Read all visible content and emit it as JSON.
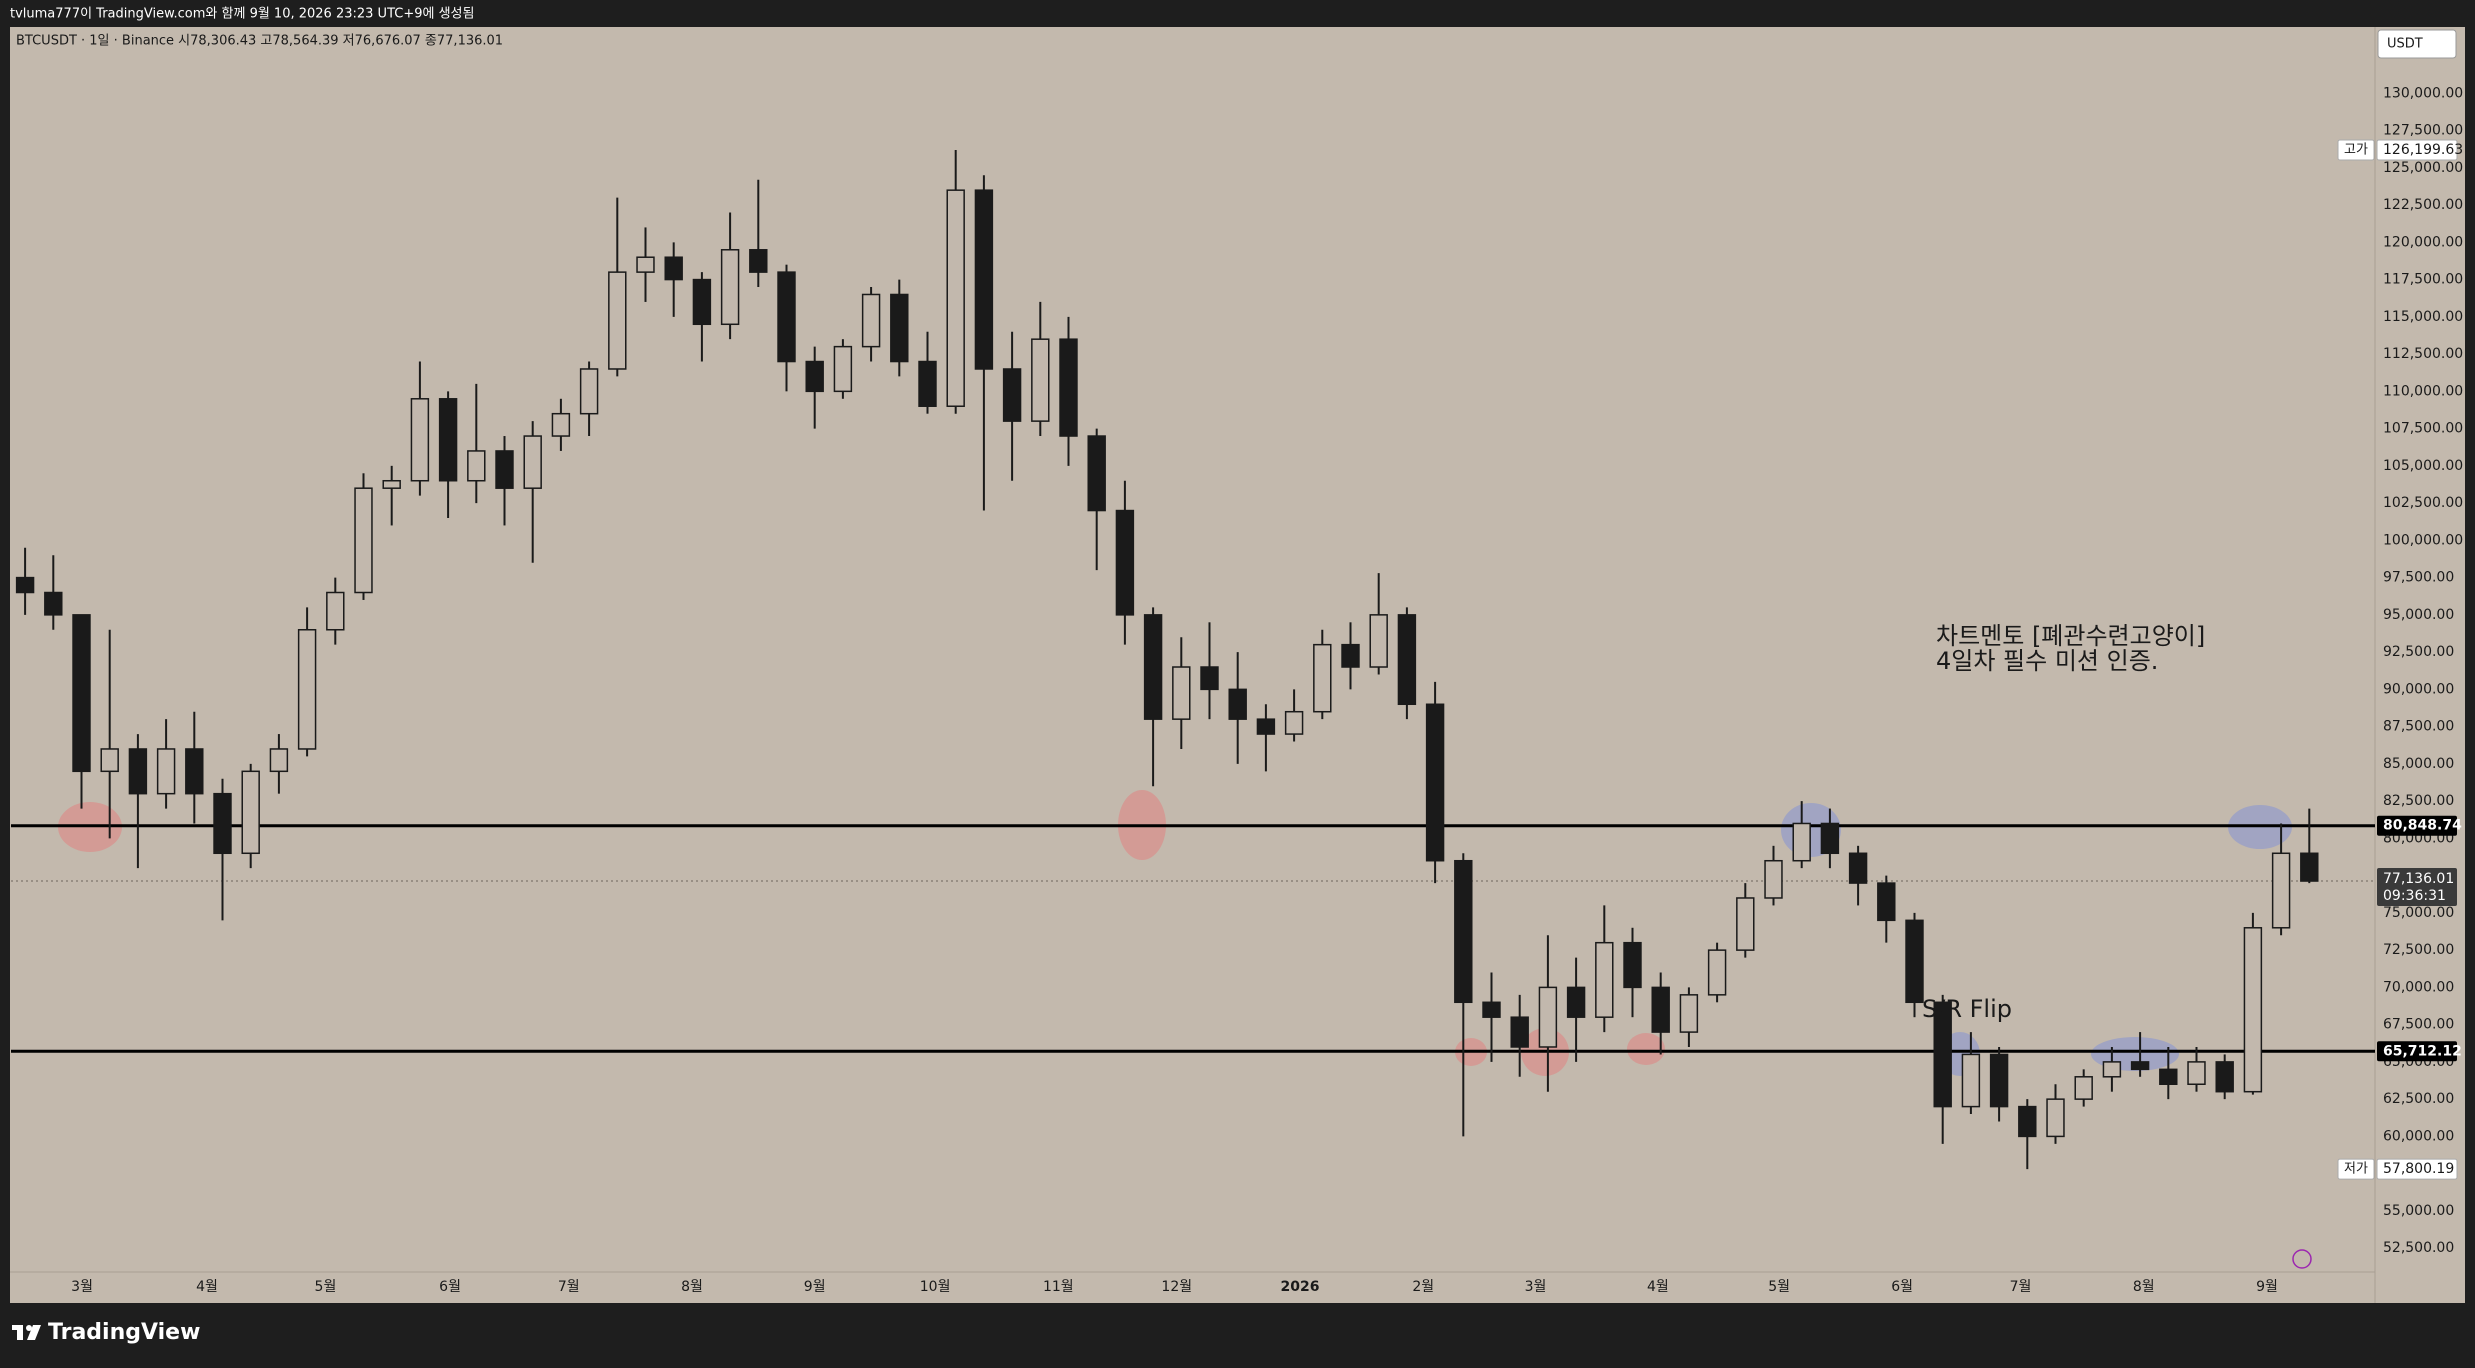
{
  "header": {
    "title": "tvluma777이 TradingView.com와 함께 9월 10, 2026 23:23 UTC+9에 생성됨",
    "symbol_info": "BTCUSDT · 1일 · Binance  시78,306.43  고78,564.39  저76,676.07  종77,136.01",
    "currency": "USDT"
  },
  "footer": {
    "brand": "TradingView"
  },
  "chart_data": {
    "type": "candlestick",
    "up_color": "#c2b8ad",
    "down_color": "#1a1a1a",
    "wick_color": "#1a1a1a",
    "grid": false,
    "open": [
      97500,
      96500,
      95000,
      84500,
      86000,
      83000,
      86000,
      83000,
      79000,
      84500,
      86000,
      94000,
      96500,
      103500,
      104000,
      109500,
      104000,
      106000,
      103500,
      107000,
      108500,
      111500,
      118000,
      119000,
      117500,
      114500,
      119500,
      118000,
      112000,
      110000,
      113000,
      116500,
      112000,
      109000,
      123500,
      111500,
      108000,
      113500,
      107000,
      102000,
      95000,
      88000,
      91500,
      90000,
      88000,
      87000,
      88500,
      93000,
      91500,
      95000,
      89000,
      78500,
      69000,
      68000,
      66000,
      70000,
      68000,
      73000,
      70000,
      67000,
      69500,
      72500,
      76000,
      78500,
      81000,
      79000,
      77000,
      74500,
      69000,
      62000,
      65500,
      62000,
      60000,
      62500,
      64000,
      65000,
      64500,
      63500,
      65000,
      63000,
      74000,
      79000
    ],
    "high": [
      99500,
      99000,
      95000,
      94000,
      87000,
      88000,
      88500,
      84000,
      85000,
      87000,
      95500,
      97500,
      104500,
      105000,
      112000,
      110000,
      110500,
      107000,
      108000,
      109500,
      112000,
      123000,
      121000,
      120000,
      118000,
      122000,
      124200,
      118500,
      113000,
      113500,
      117000,
      117500,
      114000,
      126199.63,
      124500,
      114000,
      116000,
      115000,
      107500,
      104000,
      95500,
      93500,
      94500,
      92500,
      89000,
      90000,
      94000,
      94500,
      97800,
      95500,
      90500,
      79000,
      71000,
      69500,
      73500,
      72000,
      75500,
      74000,
      71000,
      70000,
      73000,
      77000,
      79500,
      82500,
      82000,
      79500,
      77500,
      75000,
      69500,
      67000,
      66000,
      62500,
      63500,
      64500,
      66000,
      67000,
      66000,
      66000,
      65500,
      75000,
      81000,
      82000
    ],
    "low": [
      95000,
      94000,
      82000,
      80000,
      78000,
      82000,
      81000,
      74500,
      78000,
      83000,
      85500,
      93000,
      96000,
      101000,
      103000,
      101500,
      102500,
      101000,
      98500,
      106000,
      107000,
      111000,
      116000,
      115000,
      112000,
      113500,
      117000,
      110000,
      107500,
      109500,
      112000,
      111000,
      108500,
      108500,
      102000,
      104000,
      107000,
      105000,
      98000,
      93000,
      83500,
      86000,
      88000,
      85000,
      84500,
      86500,
      88000,
      90000,
      91000,
      88000,
      77000,
      60000,
      65000,
      64000,
      63000,
      65000,
      67000,
      68000,
      65500,
      66000,
      69000,
      72000,
      75500,
      78000,
      78000,
      75500,
      73000,
      68000,
      59500,
      61500,
      61000,
      57800.19,
      59500,
      62000,
      63000,
      64000,
      62500,
      63000,
      62500,
      62800,
      73500,
      77000
    ],
    "close": [
      96500,
      95000,
      84500,
      86000,
      83000,
      86000,
      83000,
      79000,
      84500,
      86000,
      94000,
      96500,
      103500,
      104000,
      109500,
      104000,
      106000,
      103500,
      107000,
      108500,
      111500,
      118000,
      119000,
      117500,
      114500,
      119500,
      118000,
      112000,
      110000,
      113000,
      116500,
      112000,
      109000,
      123500,
      111500,
      108000,
      113500,
      107000,
      102000,
      95000,
      88000,
      91500,
      90000,
      88000,
      87000,
      88500,
      93000,
      91500,
      95000,
      89000,
      78500,
      69000,
      68000,
      66000,
      70000,
      68000,
      73000,
      70000,
      67000,
      69500,
      72500,
      76000,
      78500,
      81000,
      79000,
      77000,
      74500,
      69000,
      62000,
      65500,
      62000,
      60000,
      62500,
      64000,
      65000,
      64500,
      63500,
      65000,
      63000,
      74000,
      79000,
      77136.01
    ],
    "ylim": [
      50900,
      134450
    ],
    "yticks": [
      {
        "value": 52500,
        "label": "52,500.00"
      },
      {
        "value": 55000,
        "label": "55,000.00"
      },
      {
        "value": 57500,
        "label": "57,500.00"
      },
      {
        "value": 60000,
        "label": "60,000.00"
      },
      {
        "value": 62500,
        "label": "62,500.00"
      },
      {
        "value": 65000,
        "label": "65,000.00"
      },
      {
        "value": 67500,
        "label": "67,500.00"
      },
      {
        "value": 70000,
        "label": "70,000.00"
      },
      {
        "value": 72500,
        "label": "72,500.00"
      },
      {
        "value": 75000,
        "label": "75,000.00"
      },
      {
        "value": 77500,
        "label": "77,500.00"
      },
      {
        "value": 80000,
        "label": "80,000.00"
      },
      {
        "value": 82500,
        "label": "82,500.00"
      },
      {
        "value": 85000,
        "label": "85,000.00"
      },
      {
        "value": 87500,
        "label": "87,500.00"
      },
      {
        "value": 90000,
        "label": "90,000.00"
      },
      {
        "value": 92500,
        "label": "92,500.00"
      },
      {
        "value": 95000,
        "label": "95,000.00"
      },
      {
        "value": 97500,
        "label": "97,500.00"
      },
      {
        "value": 100000,
        "label": "100,000.00"
      },
      {
        "value": 102500,
        "label": "102,500.00"
      },
      {
        "value": 105000,
        "label": "105,000.00"
      },
      {
        "value": 107500,
        "label": "107,500.00"
      },
      {
        "value": 110000,
        "label": "110,000.00"
      },
      {
        "value": 112500,
        "label": "112,500.00"
      },
      {
        "value": 115000,
        "label": "115,000.00"
      },
      {
        "value": 117500,
        "label": "117,500.00"
      },
      {
        "value": 120000,
        "label": "120,000.00"
      },
      {
        "value": 122500,
        "label": "122,500.00"
      },
      {
        "value": 125000,
        "label": "125,000.00"
      },
      {
        "value": 127500,
        "label": "127,500.00"
      },
      {
        "value": 130000,
        "label": "130,000.00"
      }
    ],
    "xticks": [
      {
        "value": 2.52,
        "label": "3월"
      },
      {
        "value": 6.95,
        "label": "4월"
      },
      {
        "value": 11.15,
        "label": "5월"
      },
      {
        "value": 15.57,
        "label": "6월"
      },
      {
        "value": 19.78,
        "label": "7월"
      },
      {
        "value": 24.15,
        "label": "8월"
      },
      {
        "value": 28.5,
        "label": "9월"
      },
      {
        "value": 32.77,
        "label": "10월"
      },
      {
        "value": 37.14,
        "label": "11월"
      },
      {
        "value": 41.34,
        "label": "12월"
      },
      {
        "value": 45.71,
        "label": "2026"
      },
      {
        "value": 50.08,
        "label": "2월"
      },
      {
        "value": 54.06,
        "label": "3월"
      },
      {
        "value": 58.4,
        "label": "4월"
      },
      {
        "value": 62.7,
        "label": "5월"
      },
      {
        "value": 67.06,
        "label": "6월"
      },
      {
        "value": 71.26,
        "label": "7월"
      },
      {
        "value": 75.63,
        "label": "8월"
      },
      {
        "value": 80.0,
        "label": "9월"
      }
    ],
    "levels": [
      {
        "value": 80848.74,
        "label": "80,848.74"
      },
      {
        "value": 65712.12,
        "label": "65,712.12"
      }
    ],
    "last_price": {
      "value": 77136.01,
      "label": "77,136.01",
      "countdown": "09:36:31"
    },
    "high_marker": {
      "tag": "고가",
      "value": 126199.63,
      "label": "126,199.63"
    },
    "low_marker": {
      "tag": "저가",
      "value": 57800.19,
      "label": "57,800.19"
    },
    "annotations": [
      "차트멘토 [폐관수련고양이]",
      "4일차 필수 미션 인증.",
      "S/R Flip"
    ]
  }
}
